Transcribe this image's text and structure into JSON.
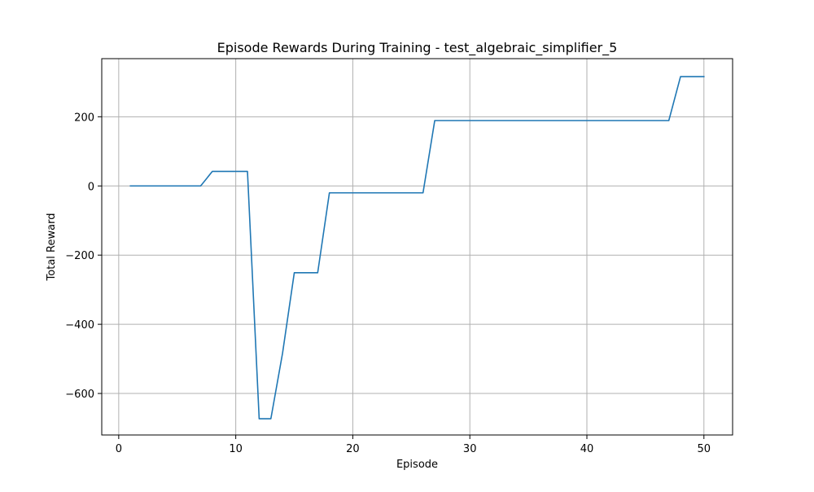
{
  "chart_data": {
    "type": "line",
    "title": "Episode Rewards During Training - test_algebraic_simplifier_5",
    "xlabel": "Episode",
    "ylabel": "Total Reward",
    "xlim": [
      -1.45,
      52.45
    ],
    "ylim": [
      -720,
      368
    ],
    "xticks": [
      0,
      10,
      20,
      30,
      40,
      50
    ],
    "yticks": [
      -600,
      -400,
      -200,
      0,
      200
    ],
    "xtick_labels": [
      "0",
      "10",
      "20",
      "30",
      "40",
      "50"
    ],
    "ytick_labels": [
      "−600",
      "−400",
      "−200",
      "0",
      "200"
    ],
    "grid": true,
    "line_color": "#1f77b4",
    "series": [
      {
        "x": [
          1,
          2,
          3,
          4,
          5,
          6,
          7,
          8,
          9,
          10,
          11,
          12,
          13,
          14,
          15,
          16,
          17,
          18,
          19,
          20,
          21,
          22,
          23,
          24,
          25,
          26,
          27,
          28,
          29,
          30,
          31,
          32,
          33,
          34,
          35,
          36,
          37,
          38,
          39,
          40,
          41,
          42,
          43,
          44,
          45,
          46,
          47,
          48,
          49,
          50
        ],
        "y": [
          0,
          0,
          0,
          0,
          0,
          0,
          0,
          42,
          42,
          42,
          42,
          -673,
          -673,
          -483,
          -251,
          -251,
          -251,
          -20,
          -20,
          -20,
          -20,
          -20,
          -20,
          -20,
          -20,
          -20,
          189,
          189,
          189,
          189,
          189,
          189,
          189,
          189,
          189,
          189,
          189,
          189,
          189,
          189,
          189,
          189,
          189,
          189,
          189,
          189,
          189,
          316,
          316,
          316
        ]
      }
    ]
  }
}
